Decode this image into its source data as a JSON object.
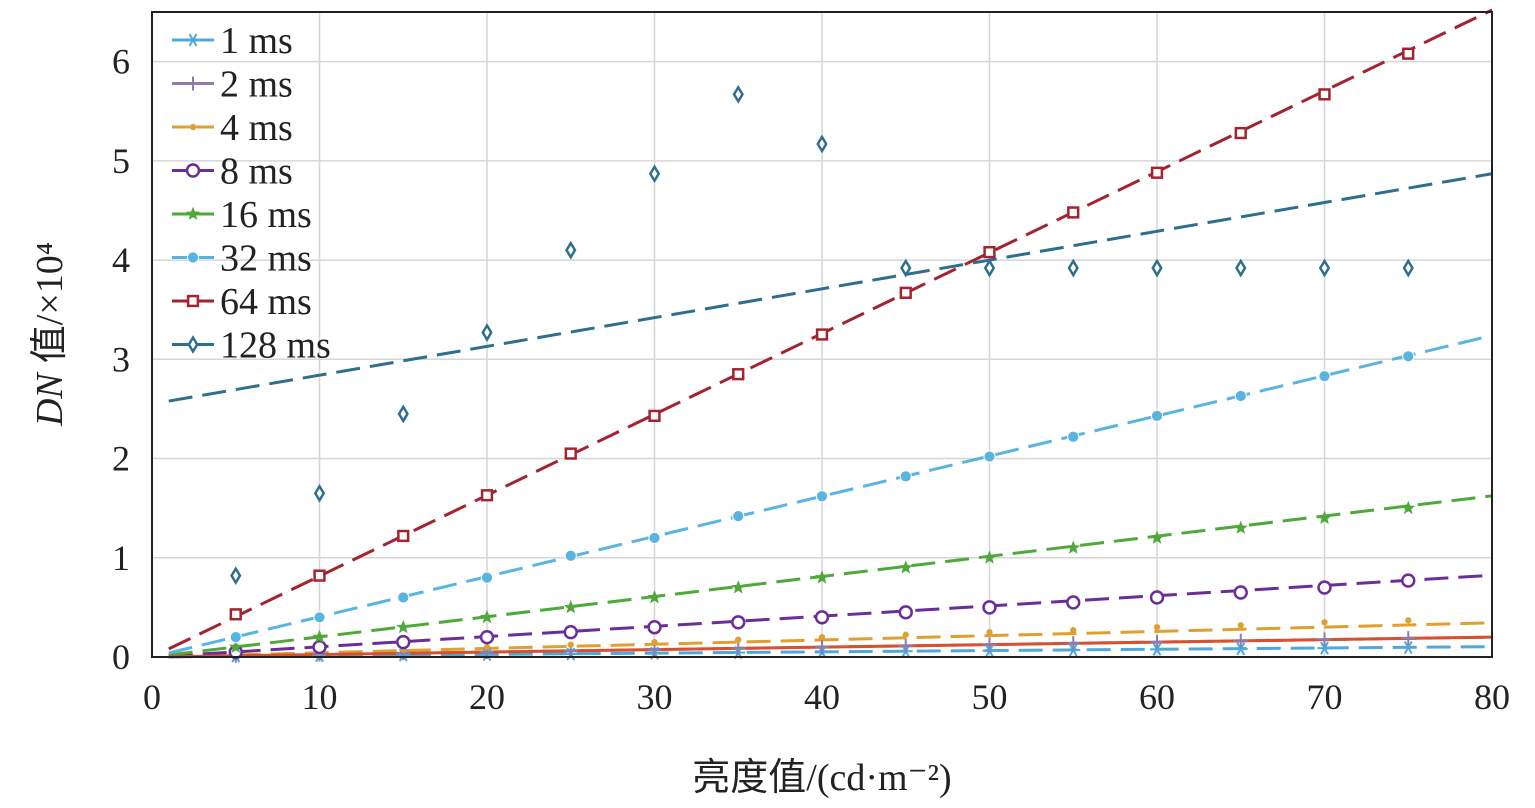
{
  "chart_data": {
    "type": "scatter",
    "title": "",
    "xlabel": "亮度值/(cd·m⁻²)",
    "ylabel": "值/×10⁴",
    "ylabel_italic": "DN",
    "xlim": [
      0,
      80
    ],
    "ylim": [
      0,
      6.5
    ],
    "xticks": [
      "0",
      "10",
      "20",
      "30",
      "40",
      "50",
      "60",
      "70",
      "80"
    ],
    "yticks": [
      "0",
      "1",
      "2",
      "3",
      "4",
      "5",
      "6"
    ],
    "grid": true,
    "legend_position": "top-left",
    "x": [
      5,
      10,
      15,
      20,
      25,
      30,
      35,
      40,
      45,
      50,
      55,
      60,
      65,
      70,
      75
    ],
    "series": [
      {
        "name": "1 ms",
        "color": "#4fa8d9",
        "marker": "asterisk",
        "values": [
          0.01,
          0.013,
          0.02,
          0.025,
          0.03,
          0.038,
          0.045,
          0.052,
          0.058,
          0.064,
          0.07,
          0.077,
          0.083,
          0.089,
          0.095
        ],
        "fit": [
          0.0,
          0.0013
        ]
      },
      {
        "name": "2 ms",
        "color": "#8c7cb0",
        "marker": "plus",
        "values": [
          0.012,
          0.025,
          0.038,
          0.05,
          0.063,
          0.076,
          0.089,
          0.1,
          0.113,
          0.126,
          0.139,
          0.152,
          0.164,
          0.177,
          0.19
        ],
        "fit": [
          0.0,
          0.0025
        ]
      },
      {
        "name": "4 ms",
        "color": "#e0a030",
        "marker": "dot",
        "values": [
          0.025,
          0.05,
          0.075,
          0.1,
          0.125,
          0.15,
          0.175,
          0.2,
          0.225,
          0.25,
          0.27,
          0.3,
          0.32,
          0.35,
          0.37
        ],
        "fit": [
          0.0,
          0.0043
        ]
      },
      {
        "name": "8 ms",
        "color": "#6a2e9a",
        "marker": "circle",
        "values": [
          0.05,
          0.1,
          0.15,
          0.2,
          0.25,
          0.3,
          0.35,
          0.4,
          0.45,
          0.5,
          0.55,
          0.6,
          0.65,
          0.7,
          0.77
        ],
        "fit": [
          0.0,
          0.0103
        ]
      },
      {
        "name": "16 ms",
        "color": "#4ea83a",
        "marker": "star",
        "values": [
          0.1,
          0.2,
          0.3,
          0.4,
          0.5,
          0.6,
          0.7,
          0.8,
          0.9,
          1.0,
          1.1,
          1.2,
          1.3,
          1.4,
          1.5
        ],
        "fit": [
          0.0,
          0.0203
        ]
      },
      {
        "name": "32 ms",
        "color": "#5ab4e0",
        "marker": "filled-circle",
        "values": [
          0.2,
          0.4,
          0.6,
          0.8,
          1.02,
          1.2,
          1.42,
          1.62,
          1.82,
          2.02,
          2.22,
          2.43,
          2.63,
          2.83,
          3.03
        ],
        "fit": [
          0.0,
          0.0405
        ]
      },
      {
        "name": "64 ms",
        "color": "#a32430",
        "marker": "square",
        "values": [
          0.43,
          0.82,
          1.22,
          1.63,
          2.05,
          2.43,
          2.85,
          3.25,
          3.67,
          4.08,
          4.48,
          4.88,
          5.28,
          5.67,
          6.08
        ],
        "fit": [
          0.0,
          0.0815
        ]
      },
      {
        "name": "128 ms",
        "color": "#2e6e8e",
        "marker": "diamond",
        "values": [
          0.82,
          1.65,
          2.45,
          3.27,
          4.1,
          4.87,
          5.67,
          5.17,
          3.92,
          3.92,
          3.92,
          3.92,
          3.92,
          3.92,
          3.92
        ],
        "fit": [
          2.55,
          0.029
        ]
      }
    ],
    "extra_line": {
      "color": "#d9502e",
      "fit": [
        0.0,
        0.0025
      ]
    }
  }
}
